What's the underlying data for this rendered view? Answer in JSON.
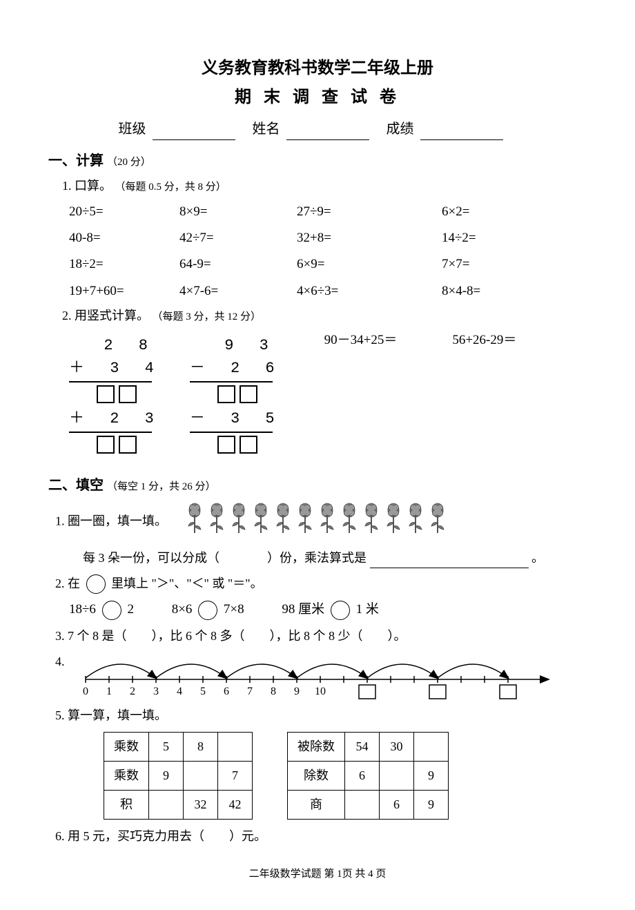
{
  "title1": "义务教育教科书数学二年级上册",
  "title2": "期 末 调 查 试 卷",
  "info": {
    "class": "班级",
    "name": "姓名",
    "score": "成绩"
  },
  "section1": {
    "heading": "一、计算",
    "pts": "（20 分）",
    "sub1": {
      "heading": "1. 口算。",
      "pts": "（每题 0.5 分，共 8 分）"
    },
    "calc": [
      "20÷5=",
      "8×9=",
      "27÷9=",
      "6×2=",
      "40-8=",
      "42÷7=",
      "32+8=",
      "14÷2=",
      "18÷2=",
      "64-9=",
      "6×9=",
      "7×7=",
      "19+7+60=",
      "4×7-6=",
      "4×6÷3=",
      "8×4-8="
    ],
    "sub2": {
      "heading": "2. 用竖式计算。",
      "pts": "（每题 3 分，共 12 分）"
    },
    "vert": {
      "a": {
        "l1": "  2 8",
        "l2": "＋ 3 4",
        "l3": "＋ 2 3"
      },
      "b": {
        "l1": "  9 3",
        "l2": "－ 2 6",
        "l3": "－ 3 5"
      },
      "c": "90－34+25＝",
      "d": "56+26-29＝"
    }
  },
  "section2": {
    "heading": "二、填空",
    "pts": "（每空 1 分，共 26 分）",
    "q1": {
      "label": "1. 圈一圈，填一填。",
      "text_a": "每 3 朵一份，可以分成（",
      "text_b": "）份，乘法算式是",
      "text_c": "。",
      "flower_count": 12
    },
    "q2": {
      "label": "2. 在",
      "label2": "里填上 \"＞\"、\"＜\" 或 \"＝\"。",
      "a1": "18÷6",
      "a2": "2",
      "b1": "8×6",
      "b2": "7×8",
      "c1": "98 厘米",
      "c2": "1 米"
    },
    "q3": "3.  7 个 8 是（　　），比 6 个 8 多（　　），比 8 个 8 少（　　）。",
    "q4": {
      "label": "4.",
      "ticks": [
        "0",
        "1",
        "2",
        "3",
        "4",
        "5",
        "6",
        "7",
        "8",
        "9",
        "10"
      ]
    },
    "q5": {
      "label": "5. 算一算，填一填。",
      "t1": {
        "r1": [
          "乘数",
          "5",
          "8",
          ""
        ],
        "r2": [
          "乘数",
          "9",
          "",
          "7"
        ],
        "r3": [
          "积",
          "",
          "32",
          "42"
        ]
      },
      "t2": {
        "r1": [
          "被除数",
          "54",
          "30",
          ""
        ],
        "r2": [
          "除数",
          "6",
          "",
          "9"
        ],
        "r3": [
          "商",
          "",
          "6",
          "9"
        ]
      }
    },
    "q6": "6. 用 5 元，买巧克力用去（　　）元。"
  },
  "footer": "二年级数学试题  第 1页  共  4 页"
}
